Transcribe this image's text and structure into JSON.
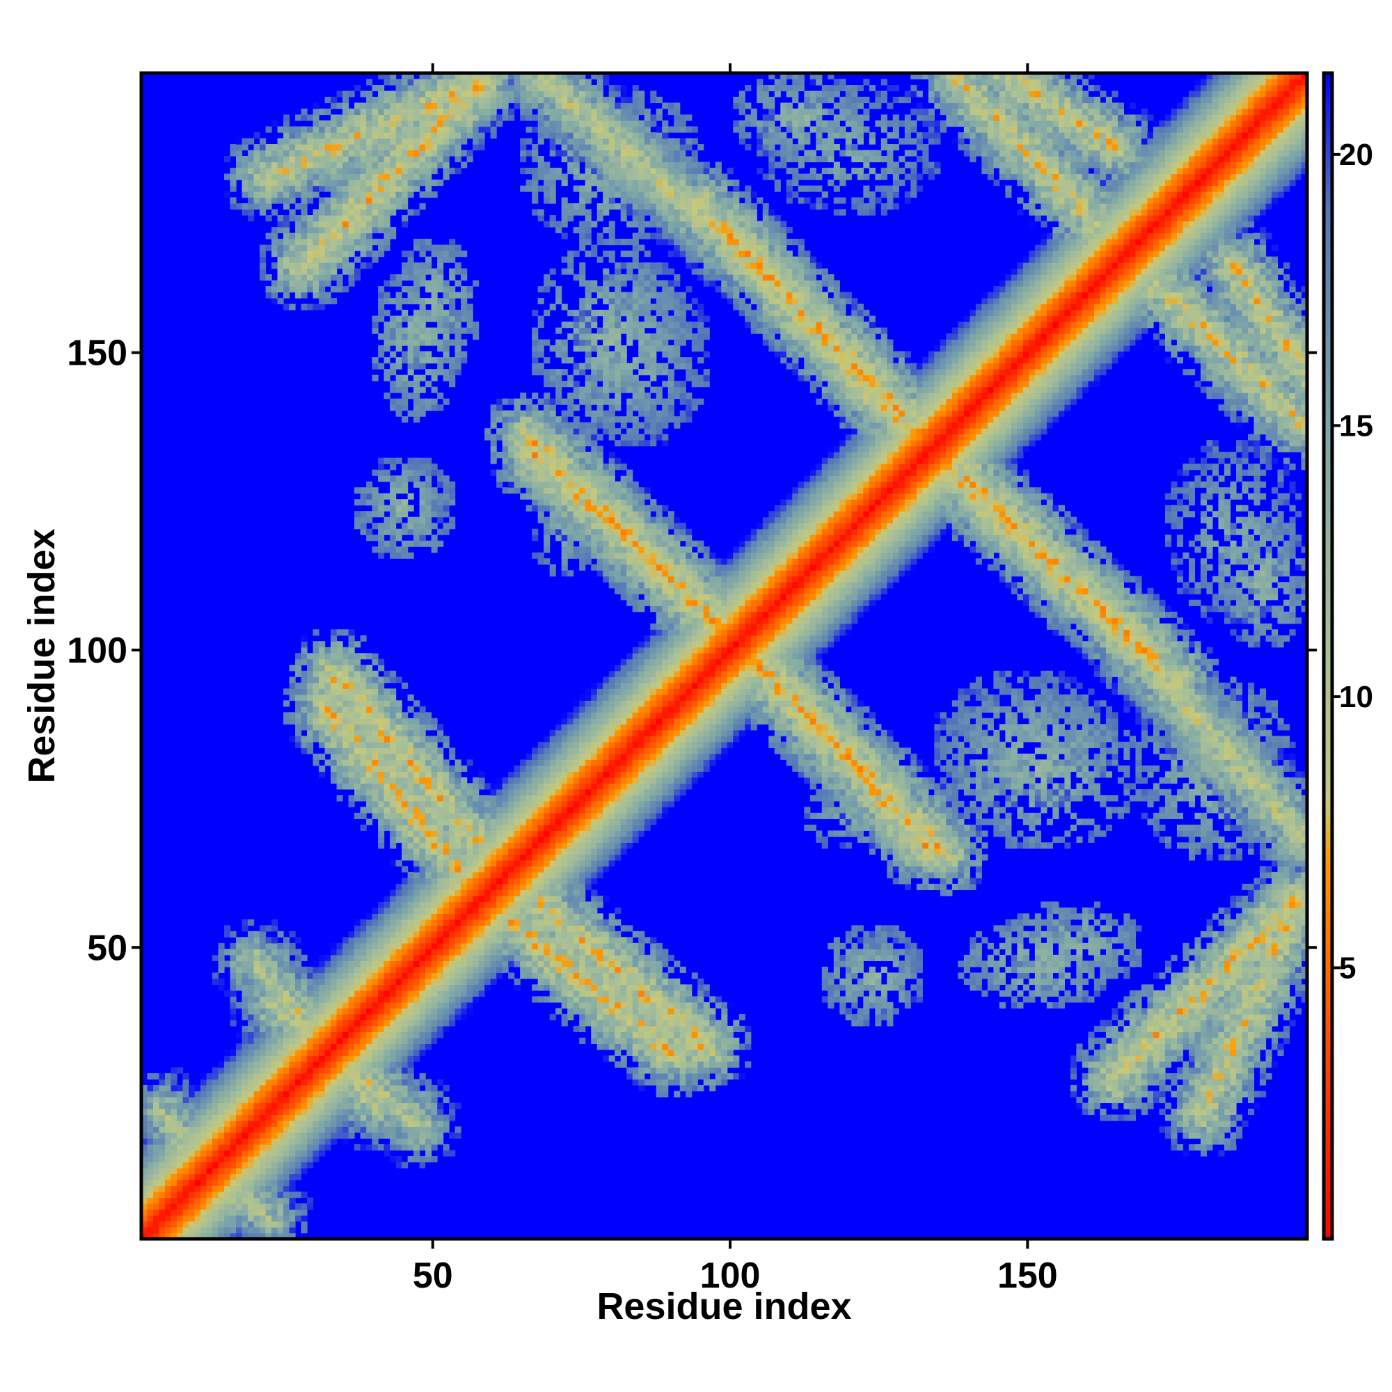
{
  "chart_data": {
    "type": "heatmap",
    "title": "",
    "xlabel": "Residue index",
    "ylabel": "Residue index",
    "xlim": [
      1,
      197
    ],
    "ylim": [
      1,
      197
    ],
    "x_ticks": [
      "50",
      "100",
      "150"
    ],
    "y_ticks": [
      "50",
      "100",
      "150"
    ],
    "colorbar": {
      "range": [
        0,
        21.5
      ],
      "ticks": [
        "5",
        "10",
        "15",
        "20"
      ],
      "stops": [
        {
          "value": 0,
          "color": "#ff0000"
        },
        {
          "value": 4,
          "color": "#ff5500"
        },
        {
          "value": 7,
          "color": "#ff9900"
        },
        {
          "value": 8,
          "color": "#c8c878"
        },
        {
          "value": 11,
          "color": "#a8c098"
        },
        {
          "value": 15,
          "color": "#7ea6a8"
        },
        {
          "value": 19,
          "color": "#5478b8"
        },
        {
          "value": 21.5,
          "color": "#0000ff"
        }
      ]
    },
    "background_color": "#0000ff",
    "description_values": {
      "diagonal_distance": 0,
      "background_distance": 21.5
    },
    "contact_bands": [
      {
        "i": [
          33,
          57
        ],
        "j": [
          96,
          68
        ],
        "min": 5.5
      },
      {
        "i": [
          63,
          90
        ],
        "j": [
          54,
          32
        ],
        "min": 5.5
      },
      {
        "i": [
          66,
          100
        ],
        "j": [
          136,
          102
        ],
        "min": 5.5
      },
      {
        "i": [
          103,
          133
        ],
        "j": [
          100,
          67
        ],
        "min": 5.5
      },
      {
        "i": [
          134,
          175
        ],
        "j": [
          135,
          95
        ],
        "min": 5.5
      },
      {
        "i": [
          100,
          135
        ],
        "j": [
          170,
          132
        ],
        "min": 5.5
      },
      {
        "i": [
          68,
          103
        ],
        "j": [
          197,
          166
        ],
        "min": 7
      },
      {
        "i": [
          22,
          58
        ],
        "j": [
          180,
          196
        ],
        "min": 6
      },
      {
        "i": [
          147,
          165
        ],
        "j": [
          197,
          185
        ],
        "min": 6
      },
      {
        "i": [
          172,
          197
        ],
        "j": [
          162,
          138
        ],
        "min": 6
      },
      {
        "i": [
          170,
          197
        ],
        "j": [
          98,
          68
        ],
        "min": 8
      },
      {
        "i": [
          165,
          195
        ],
        "j": [
          28,
          57
        ],
        "min": 5.5
      },
      {
        "i": [
          23,
          47
        ],
        "j": [
          40,
          20
        ],
        "min": 7
      },
      {
        "i": [
          4,
          14
        ],
        "j": [
          22,
          8
        ],
        "min": 8
      }
    ],
    "contact_patches": [
      {
        "i": 45,
        "j": 125,
        "ri": 8,
        "rj": 8,
        "min": 11
      },
      {
        "i": 50,
        "j": 158,
        "ri": 8,
        "rj": 12,
        "min": 10
      },
      {
        "i": 80,
        "j": 152,
        "ri": 14,
        "rj": 18,
        "min": 10
      },
      {
        "i": 112,
        "j": 190,
        "ri": 12,
        "rj": 8,
        "min": 10
      },
      {
        "i": 124,
        "j": 45,
        "ri": 9,
        "rj": 9,
        "min": 10
      },
      {
        "i": 152,
        "j": 47,
        "ri": 14,
        "rj": 8,
        "min": 10
      },
      {
        "i": 150,
        "j": 85,
        "ri": 16,
        "rj": 12,
        "min": 11
      },
      {
        "i": 185,
        "j": 120,
        "ri": 12,
        "rj": 16,
        "min": 11
      },
      {
        "i": 120,
        "j": 72,
        "ri": 8,
        "rj": 6,
        "min": 11
      },
      {
        "i": 182,
        "j": 80,
        "ri": 14,
        "rj": 16,
        "min": 10
      }
    ]
  }
}
